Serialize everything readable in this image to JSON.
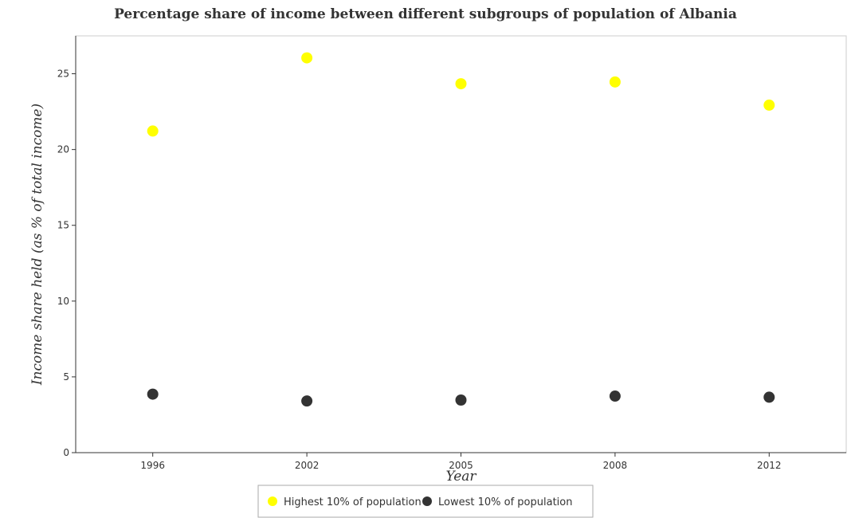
{
  "chart_data": {
    "type": "scatter",
    "title": "Percentage share of income between different subgroups of population of Albania",
    "xlabel": "Year",
    "ylabel": "Income share held (as % of total income)",
    "categories": [
      "1996",
      "2002",
      "2005",
      "2008",
      "2012"
    ],
    "series": [
      {
        "name": "Highest 10% of population",
        "color": "#ffff00",
        "values": [
          21.22,
          26.05,
          24.34,
          24.46,
          22.93
        ]
      },
      {
        "name": "Lowest 10% of population",
        "color": "#333333",
        "values": [
          3.86,
          3.41,
          3.47,
          3.73,
          3.66
        ]
      }
    ],
    "ylim": [
      0,
      27.5
    ],
    "yticks": [
      0,
      5,
      10,
      15,
      20,
      25
    ],
    "grid": false,
    "legend_position": "bottom-center"
  }
}
